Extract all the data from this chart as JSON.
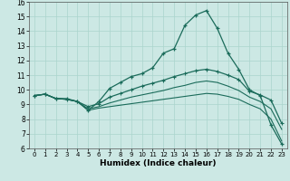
{
  "xlabel": "Humidex (Indice chaleur)",
  "bg_color": "#cce8e4",
  "grid_color": "#aad4cc",
  "line_color": "#1a6b5a",
  "xlim": [
    -0.5,
    23.5
  ],
  "ylim": [
    6,
    16
  ],
  "xticks": [
    0,
    1,
    2,
    3,
    4,
    5,
    6,
    7,
    8,
    9,
    10,
    11,
    12,
    13,
    14,
    15,
    16,
    17,
    18,
    19,
    20,
    21,
    22,
    23
  ],
  "yticks": [
    6,
    7,
    8,
    9,
    10,
    11,
    12,
    13,
    14,
    15,
    16
  ],
  "line1_x": [
    0,
    1,
    2,
    3,
    4,
    5,
    6,
    7,
    8,
    9,
    10,
    11,
    12,
    13,
    14,
    15,
    16,
    17,
    18,
    19,
    20,
    21,
    22,
    23
  ],
  "line1_y": [
    9.6,
    9.7,
    9.4,
    9.4,
    9.2,
    8.6,
    9.2,
    10.1,
    10.5,
    10.9,
    11.1,
    11.5,
    12.5,
    12.8,
    14.4,
    15.1,
    15.4,
    14.2,
    12.5,
    11.4,
    10.0,
    9.6,
    7.6,
    6.3
  ],
  "line2_x": [
    0,
    1,
    2,
    3,
    4,
    5,
    6,
    7,
    8,
    9,
    10,
    11,
    12,
    13,
    14,
    15,
    16,
    17,
    18,
    19,
    20,
    21,
    22,
    23
  ],
  "line2_y": [
    9.6,
    9.7,
    9.4,
    9.35,
    9.2,
    8.85,
    9.05,
    9.5,
    9.75,
    10.0,
    10.25,
    10.45,
    10.65,
    10.9,
    11.1,
    11.3,
    11.4,
    11.25,
    11.0,
    10.7,
    9.9,
    9.65,
    9.3,
    7.7
  ],
  "line3_x": [
    0,
    1,
    2,
    3,
    4,
    5,
    6,
    7,
    8,
    9,
    10,
    11,
    12,
    13,
    14,
    15,
    16,
    17,
    18,
    19,
    20,
    21,
    22,
    23
  ],
  "line3_y": [
    9.6,
    9.7,
    9.4,
    9.35,
    9.2,
    8.7,
    8.85,
    9.1,
    9.3,
    9.5,
    9.65,
    9.8,
    9.95,
    10.15,
    10.3,
    10.5,
    10.6,
    10.5,
    10.25,
    9.95,
    9.5,
    9.2,
    8.7,
    7.3
  ],
  "line4_x": [
    0,
    1,
    2,
    3,
    4,
    5,
    6,
    7,
    8,
    9,
    10,
    11,
    12,
    13,
    14,
    15,
    16,
    17,
    18,
    19,
    20,
    21,
    22,
    23
  ],
  "line4_y": [
    9.6,
    9.7,
    9.4,
    9.35,
    9.2,
    8.6,
    8.75,
    8.85,
    8.95,
    9.05,
    9.15,
    9.25,
    9.35,
    9.45,
    9.55,
    9.65,
    9.75,
    9.7,
    9.55,
    9.35,
    9.0,
    8.7,
    8.0,
    6.5
  ]
}
